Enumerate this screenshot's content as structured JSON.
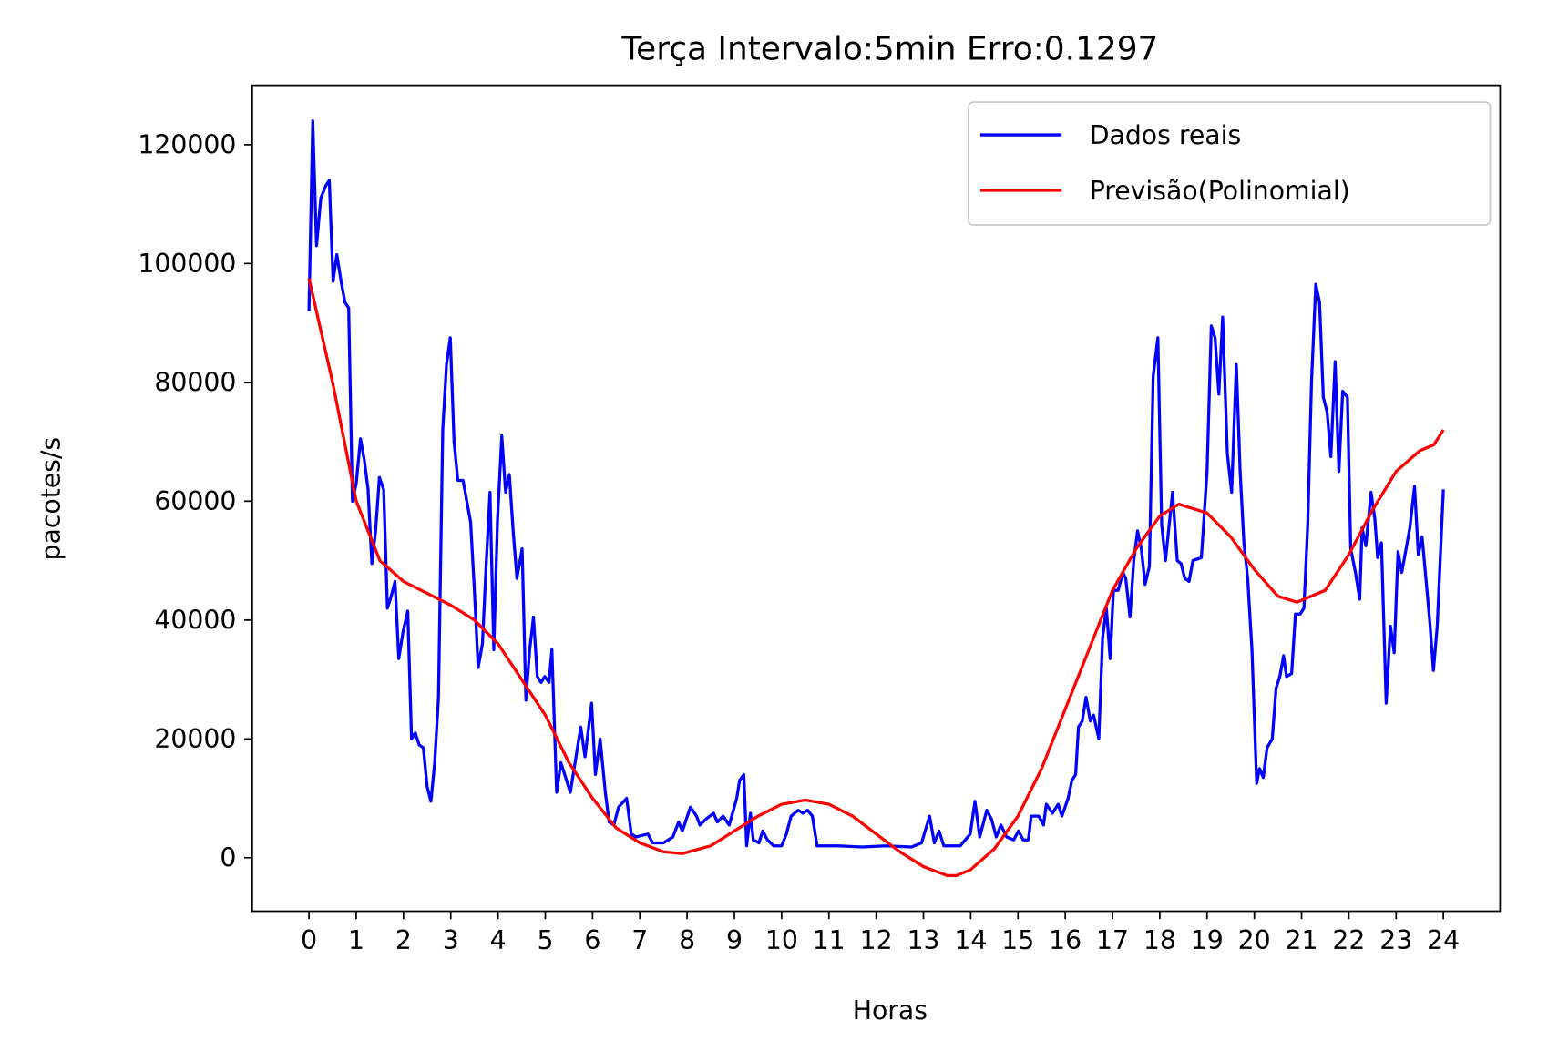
{
  "chart_data": {
    "type": "line",
    "title": "Terça Intervalo:5min Erro:0.1297",
    "xlabel": "Horas",
    "ylabel": "pacotes/s",
    "xlim": [
      -1.2,
      25.2
    ],
    "ylim": [
      -9000,
      130000
    ],
    "xticks": [
      0,
      1,
      2,
      3,
      4,
      5,
      6,
      7,
      8,
      9,
      10,
      11,
      12,
      13,
      14,
      15,
      16,
      17,
      18,
      19,
      20,
      21,
      22,
      23,
      24
    ],
    "yticks": [
      0,
      20000,
      40000,
      60000,
      80000,
      100000,
      120000
    ],
    "legend": "upper right",
    "series": [
      {
        "name": "Dados reais",
        "color": "#0000ff",
        "x": [
          0,
          0.08,
          0.16,
          0.25,
          0.35,
          0.43,
          0.51,
          0.59,
          0.68,
          0.76,
          0.84,
          0.92,
          1.0,
          1.09,
          1.17,
          1.25,
          1.33,
          1.41,
          1.49,
          1.58,
          1.66,
          1.74,
          1.82,
          1.9,
          1.99,
          2.09,
          2.17,
          2.25,
          2.33,
          2.42,
          2.5,
          2.58,
          2.66,
          2.74,
          2.83,
          2.91,
          2.99,
          3.07,
          3.15,
          3.26,
          3.42,
          3.5,
          3.58,
          3.67,
          3.75,
          3.83,
          3.91,
          3.99,
          4.08,
          4.16,
          4.24,
          4.32,
          4.4,
          4.51,
          4.59,
          4.67,
          4.75,
          4.83,
          4.91,
          4.99,
          5.08,
          5.14,
          5.24,
          5.33,
          5.53,
          5.75,
          5.84,
          5.98,
          6.06,
          6.16,
          6.27,
          6.35,
          6.45,
          6.55,
          6.72,
          6.82,
          6.92,
          7.17,
          7.27,
          7.5,
          7.7,
          7.82,
          7.9,
          8.07,
          8.2,
          8.27,
          8.4,
          8.56,
          8.64,
          8.76,
          8.89,
          9.05,
          9.11,
          9.2,
          9.26,
          9.34,
          9.4,
          9.52,
          9.6,
          9.7,
          9.83,
          10.0,
          10.1,
          10.2,
          10.35,
          10.45,
          10.55,
          10.65,
          10.75,
          11.2,
          11.7,
          12.2,
          12.75,
          12.96,
          13.13,
          13.23,
          13.33,
          13.43,
          13.78,
          13.99,
          14.09,
          14.19,
          14.34,
          14.44,
          14.54,
          14.64,
          14.76,
          14.91,
          15.01,
          15.11,
          15.22,
          15.28,
          15.44,
          15.54,
          15.6,
          15.73,
          15.85,
          15.93,
          16.06,
          16.14,
          16.22,
          16.28,
          16.36,
          16.44,
          16.53,
          16.6,
          16.71,
          16.79,
          16.87,
          16.95,
          17.02,
          17.12,
          17.22,
          17.28,
          17.37,
          17.45,
          17.53,
          17.61,
          17.69,
          17.78,
          17.86,
          17.96,
          18.04,
          18.12,
          18.27,
          18.37,
          18.45,
          18.53,
          18.62,
          18.7,
          18.88,
          19.0,
          19.09,
          19.17,
          19.25,
          19.33,
          19.43,
          19.52,
          19.62,
          19.7,
          19.78,
          19.86,
          19.95,
          20.05,
          20.11,
          20.19,
          20.27,
          20.38,
          20.46,
          20.54,
          20.62,
          20.68,
          20.79,
          20.87,
          20.97,
          21.05,
          21.13,
          21.21,
          21.3,
          21.38,
          21.46,
          21.54,
          21.62,
          21.71,
          21.79,
          21.87,
          21.97,
          22.04,
          22.14,
          22.23,
          22.28,
          22.36,
          22.47,
          22.55,
          22.61,
          22.69,
          22.79,
          22.88,
          22.96,
          23.04,
          23.12,
          23.2,
          23.29,
          23.39,
          23.47,
          23.55,
          23.63,
          23.71,
          23.79,
          23.87,
          24.0
        ],
        "values": [
          92000,
          124000,
          103000,
          111000,
          113000,
          114000,
          97000,
          101500,
          97000,
          93500,
          92500,
          60000,
          63000,
          70500,
          67000,
          62000,
          49500,
          55000,
          64000,
          62000,
          42000,
          44000,
          46500,
          33500,
          38000,
          41500,
          20000,
          21000,
          19000,
          18500,
          12000,
          9500,
          16000,
          27000,
          72000,
          83000,
          87500,
          70000,
          63500,
          63500,
          56500,
          45000,
          32000,
          36000,
          49500,
          61500,
          35000,
          57000,
          71000,
          61500,
          64500,
          55000,
          47000,
          52000,
          26500,
          35000,
          40500,
          30500,
          29500,
          30500,
          29500,
          35000,
          11000,
          16000,
          11000,
          22000,
          17000,
          26000,
          14000,
          20000,
          11000,
          6000,
          5500,
          8500,
          10000,
          4000,
          3500,
          4000,
          2500,
          2500,
          3500,
          6000,
          4500,
          8500,
          7000,
          5500,
          6500,
          7500,
          6000,
          7000,
          5500,
          10000,
          13000,
          14000,
          2000,
          7500,
          3000,
          2500,
          4500,
          3000,
          2000,
          2000,
          4000,
          7000,
          8000,
          7500,
          8000,
          7000,
          2000,
          2000,
          1800,
          2000,
          1800,
          2500,
          7000,
          2500,
          4500,
          2000,
          2000,
          4000,
          9500,
          3500,
          8000,
          6500,
          3500,
          5500,
          3500,
          3000,
          4500,
          3000,
          3000,
          7000,
          7000,
          5500,
          9000,
          7500,
          9000,
          7000,
          10000,
          13000,
          14000,
          22000,
          23000,
          27000,
          23000,
          24000,
          20000,
          37000,
          42000,
          33500,
          45000,
          45000,
          48000,
          47000,
          40500,
          50000,
          55000,
          52000,
          46000,
          49000,
          81000,
          87500,
          56000,
          50000,
          61500,
          50000,
          49500,
          47000,
          46500,
          50000,
          50500,
          65000,
          89500,
          87500,
          78000,
          91000,
          68000,
          61500,
          83000,
          65000,
          53000,
          47000,
          35000,
          12500,
          15000,
          13500,
          18500,
          20000,
          28500,
          30500,
          34000,
          30500,
          31000,
          41000,
          41000,
          42000,
          56000,
          80000,
          96500,
          93500,
          77500,
          75000,
          67500,
          83500,
          65000,
          78500,
          77500,
          52000,
          48000,
          43500,
          55500,
          52500,
          61500,
          57000,
          50500,
          53000,
          26000,
          39000,
          34500,
          51500,
          48000,
          51500,
          55500,
          62500,
          51000,
          54000,
          47000,
          40000,
          31500,
          39000,
          62000
        ]
      },
      {
        "name": "Previsão(Polinomial)",
        "color": "#ff0000",
        "x": [
          0,
          0.5,
          1,
          1.5,
          2,
          2.5,
          3,
          3.5,
          4,
          4.5,
          5,
          5.5,
          6,
          6.5,
          7,
          7.5,
          7.9,
          8.5,
          9,
          9.5,
          10,
          10.5,
          11,
          11.5,
          12,
          12.5,
          13,
          13.5,
          13.7,
          14,
          14.5,
          15,
          15.5,
          16,
          16.5,
          17,
          17.5,
          18,
          18.4,
          19,
          19.5,
          20,
          20.5,
          20.9,
          21.5,
          22,
          22.5,
          23,
          23.5,
          23.8,
          24
        ],
        "values": [
          97500,
          80000,
          60000,
          50000,
          46500,
          44500,
          42500,
          40000,
          36000,
          30000,
          24000,
          16000,
          10000,
          5000,
          2500,
          1000,
          700,
          2000,
          4500,
          7000,
          9000,
          9700,
          9000,
          7000,
          4000,
          1000,
          -1500,
          -3000,
          -3000,
          -2000,
          1500,
          7000,
          15000,
          25000,
          35000,
          45000,
          52000,
          57500,
          59500,
          58000,
          54000,
          48500,
          44000,
          43000,
          45000,
          51000,
          58500,
          65000,
          68500,
          69500,
          72000
        ]
      }
    ]
  }
}
